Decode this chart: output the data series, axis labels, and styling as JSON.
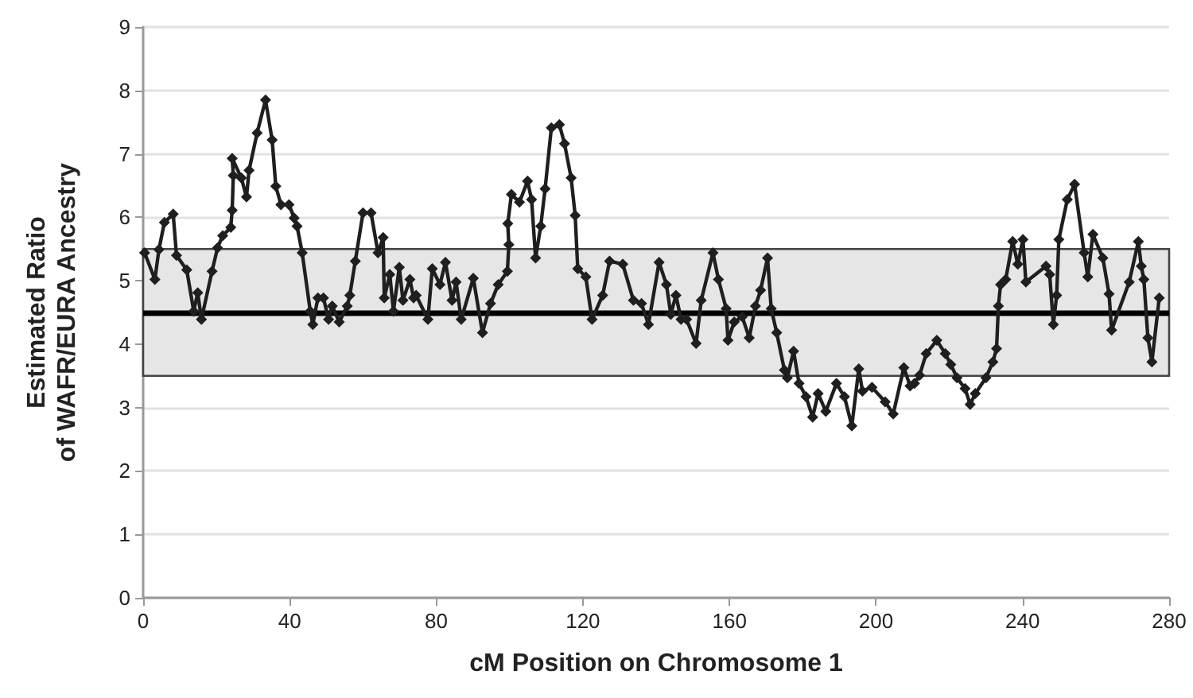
{
  "chart_data": {
    "type": "line",
    "xlabel": "cM Position on Chromosome 1",
    "ylabel": "Estimated Ratio\nof WAFR/EURA Ancestry",
    "xlim": [
      0,
      280
    ],
    "xticks": [
      0,
      40,
      80,
      120,
      160,
      200,
      240,
      280
    ],
    "ylim": [
      0,
      9
    ],
    "yticks": [
      0,
      1,
      2,
      3,
      4,
      5,
      6,
      7,
      8,
      9
    ],
    "grid": "y",
    "marker": "diamond",
    "line_style": "solid",
    "series": [
      {
        "color": "#1f1f1f",
        "x": [
          0.4,
          3.2,
          4.3,
          5.8,
          8.2,
          9.1,
          11.9,
          13.8,
          14.9,
          15.9,
          18.8,
          20.3,
          21.7,
          23.9,
          24.3,
          24.6,
          24.3,
          26.8,
          28.2,
          28.9,
          31.1,
          33.4,
          35.2,
          36.2,
          37.6,
          39.8,
          41.2,
          42.0,
          43.4,
          45.6,
          46.3,
          47.7,
          49.2,
          50.6,
          51.6,
          53.5,
          55.7,
          56.4,
          57.9,
          60.0,
          62.2,
          64.1,
          65.5,
          65.8,
          67.3,
          68.3,
          69.9,
          70.9,
          72.8,
          73.8,
          74.5,
          77.7,
          78.9,
          81.0,
          82.5,
          84.3,
          85.4,
          86.8,
          90.1,
          92.6,
          94.8,
          96.9,
          99.4,
          99.8,
          99.5,
          100.5,
          102.7,
          104.9,
          106.0,
          107.1,
          108.5,
          109.7,
          111.4,
          113.6,
          115.0,
          116.8,
          117.9,
          118.6,
          120.8,
          122.5,
          125.4,
          127.3,
          130.9,
          133.8,
          136.0,
          137.9,
          140.8,
          142.8,
          144.0,
          145.4,
          146.8,
          148.3,
          150.9,
          152.3,
          155.5,
          157.0,
          159.1,
          159.6,
          161.3,
          163.5,
          165.4,
          167.1,
          168.5,
          170.4,
          171.4,
          172.9,
          175.0,
          175.8,
          177.5,
          179.0,
          180.9,
          182.7,
          184.2,
          186.3,
          189.2,
          191.4,
          193.4,
          195.3,
          196.3,
          198.9,
          202.5,
          204.7,
          207.6,
          209.3,
          210.5,
          211.9,
          213.7,
          216.6,
          218.9,
          220.4,
          222.1,
          224.3,
          225.7,
          227.1,
          230.0,
          231.9,
          232.9,
          233.4,
          234.0,
          235.4,
          237.3,
          238.7,
          240.1,
          240.9,
          246.4,
          247.4,
          248.4,
          249.3,
          249.9,
          252.2,
          254.2,
          256.8,
          257.8,
          259.2,
          261.9,
          263.6,
          264.3,
          269.1,
          271.6,
          272.4,
          273.1,
          274.2,
          275.3,
          277.3
        ],
        "values": [
          5.44,
          5.02,
          5.49,
          5.92,
          6.05,
          5.4,
          5.17,
          4.52,
          4.81,
          4.39,
          5.15,
          5.52,
          5.71,
          5.84,
          6.11,
          6.66,
          6.93,
          6.62,
          6.32,
          6.74,
          7.33,
          7.85,
          7.22,
          6.49,
          6.2,
          6.2,
          5.99,
          5.86,
          5.44,
          4.52,
          4.31,
          4.73,
          4.73,
          4.39,
          4.6,
          4.35,
          4.6,
          4.77,
          5.31,
          6.07,
          6.07,
          5.44,
          5.68,
          4.73,
          5.1,
          4.52,
          5.21,
          4.69,
          5.02,
          4.73,
          4.77,
          4.39,
          5.19,
          4.94,
          5.29,
          4.69,
          4.98,
          4.39,
          5.04,
          4.18,
          4.64,
          4.94,
          5.15,
          5.57,
          5.9,
          6.36,
          6.24,
          6.57,
          6.28,
          5.36,
          5.86,
          6.45,
          7.41,
          7.46,
          7.16,
          6.62,
          6.03,
          5.19,
          5.06,
          4.39,
          4.77,
          5.31,
          5.26,
          4.69,
          4.64,
          4.31,
          5.29,
          4.94,
          4.47,
          4.77,
          4.39,
          4.39,
          4.01,
          4.69,
          5.44,
          5.02,
          4.56,
          4.06,
          4.35,
          4.43,
          4.1,
          4.6,
          4.85,
          5.36,
          4.56,
          4.18,
          3.59,
          3.47,
          3.89,
          3.38,
          3.17,
          2.85,
          3.22,
          2.94,
          3.38,
          3.17,
          2.71,
          3.61,
          3.26,
          3.32,
          3.09,
          2.9,
          3.63,
          3.34,
          3.38,
          3.51,
          3.85,
          4.06,
          3.85,
          3.68,
          3.47,
          3.3,
          3.05,
          3.22,
          3.47,
          3.72,
          3.93,
          4.6,
          4.94,
          5.02,
          5.62,
          5.26,
          5.65,
          4.98,
          5.23,
          5.1,
          4.31,
          4.77,
          5.65,
          6.28,
          6.52,
          5.44,
          5.06,
          5.73,
          5.36,
          4.79,
          4.22,
          4.98,
          5.62,
          5.23,
          5.02,
          4.1,
          3.72,
          4.73
        ]
      }
    ],
    "ref_lines": [
      {
        "axis": "y",
        "value": 4.5,
        "color": "#000000",
        "line_style": "solid"
      }
    ],
    "bands": [
      {
        "axis": "y",
        "from": 3.5,
        "to": 5.5,
        "color": "#e6e6e6"
      }
    ]
  }
}
